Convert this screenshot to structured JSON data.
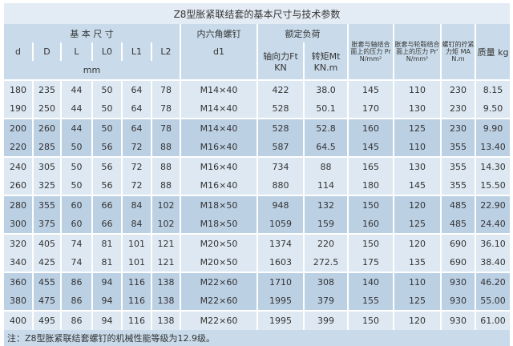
{
  "title": "Z8型胀紧联结套的基本尺寸与技术参数",
  "headers": {
    "basic_dims": "基 本 尺 寸",
    "screw": "内六角螺钉",
    "rated_load": "额定负荷",
    "pressure_shaft": "胀套与轴结合面上的压力 Pr N/mm²",
    "pressure_hub": "胀套与轮毂结合面上的压力 Pr' N/mm²",
    "screw_torque": "螺钉的拧紧力矩 MA N.m",
    "mass": "质量 kg",
    "cols": [
      "d",
      "D",
      "L",
      "L0",
      "L1",
      "L2"
    ],
    "d1": "d1",
    "axial": "轴向力Ft KN",
    "torque": "转矩Mt KN.m",
    "unit": "mm"
  },
  "rows": [
    [
      "180",
      "235",
      "44",
      "50",
      "64",
      "78",
      "M14×40",
      "422",
      "38.0",
      "145",
      "110",
      "230",
      "8.15"
    ],
    [
      "190",
      "250",
      "44",
      "50",
      "64",
      "78",
      "M14×40",
      "528",
      "50.1",
      "170",
      "130",
      "230",
      "9.50"
    ],
    [
      "200",
      "260",
      "44",
      "50",
      "64",
      "78",
      "M14×40",
      "528",
      "52.8",
      "160",
      "125",
      "230",
      "9.90"
    ],
    [
      "220",
      "285",
      "50",
      "56",
      "72",
      "88",
      "M16×40",
      "587",
      "64.5",
      "145",
      "110",
      "355",
      "13.40"
    ],
    [
      "240",
      "305",
      "50",
      "56",
      "72",
      "88",
      "M16×40",
      "734",
      "88",
      "165",
      "130",
      "355",
      "14.30"
    ],
    [
      "260",
      "325",
      "50",
      "56",
      "72",
      "88",
      "M16×40",
      "880",
      "114",
      "180",
      "145",
      "355",
      "15.50"
    ],
    [
      "280",
      "355",
      "60",
      "66",
      "84",
      "102",
      "M18×50",
      "948",
      "132",
      "150",
      "120",
      "485",
      "22.90"
    ],
    [
      "300",
      "375",
      "60",
      "66",
      "84",
      "102",
      "M18×50",
      "1059",
      "159",
      "160",
      "125",
      "485",
      "24.40"
    ],
    [
      "320",
      "405",
      "74",
      "81",
      "101",
      "121",
      "M20×50",
      "1374",
      "220",
      "150",
      "120",
      "690",
      "36.10"
    ],
    [
      "340",
      "425",
      "74",
      "81",
      "101",
      "121",
      "M20×50",
      "1603",
      "272.5",
      "175",
      "135",
      "690",
      "38.40"
    ],
    [
      "360",
      "455",
      "86",
      "94",
      "116",
      "138",
      "M22×60",
      "1710",
      "308",
      "140",
      "110",
      "930",
      "46.20"
    ],
    [
      "380",
      "475",
      "86",
      "94",
      "116",
      "138",
      "M22×60",
      "1995",
      "379",
      "155",
      "125",
      "930",
      "55.00"
    ],
    [
      "400",
      "495",
      "86",
      "94",
      "116",
      "138",
      "M22×60",
      "1995",
      "399",
      "150",
      "120",
      "930",
      "61.00"
    ]
  ],
  "note": "注：Z8型胀紧联结套螺钉的机械性能等级为12.9级。",
  "colors": {
    "light": "#dde8f2",
    "dark": "#bcd0e4",
    "header": "#c9dbea"
  }
}
